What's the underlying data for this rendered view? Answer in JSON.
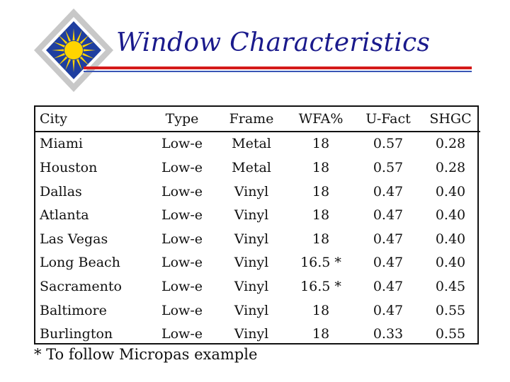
{
  "title": "Window Characteristics",
  "colors": {
    "title": "#1a1a8c",
    "rule_red": "#d41a1a",
    "rule_blue": "#3a55b5",
    "logo_blue": "#1f3fa0",
    "logo_yellow": "#ffd400"
  },
  "logo": {
    "icon": "sun-diamond-logo-icon"
  },
  "table": {
    "headers": [
      "City",
      "Type",
      "Frame",
      "WFA%",
      "U-Fact",
      "SHGC"
    ],
    "rows": [
      [
        "Miami",
        "Low-e",
        "Metal",
        "18",
        "0.57",
        "0.28"
      ],
      [
        "Houston",
        "Low-e",
        "Metal",
        "18",
        "0.57",
        "0.28"
      ],
      [
        "Dallas",
        "Low-e",
        "Vinyl",
        "18",
        "0.47",
        "0.40"
      ],
      [
        "Atlanta",
        "Low-e",
        "Vinyl",
        "18",
        "0.47",
        "0.40"
      ],
      [
        "Las Vegas",
        "Low-e",
        "Vinyl",
        "18",
        "0.47",
        "0.40"
      ],
      [
        "Long Beach",
        "Low-e",
        "Vinyl",
        "16.5 *",
        "0.47",
        "0.40"
      ],
      [
        "Sacramento",
        "Low-e",
        "Vinyl",
        "16.5 *",
        "0.47",
        "0.45"
      ],
      [
        "Baltimore",
        "Low-e",
        "Vinyl",
        "18",
        "0.47",
        "0.55"
      ],
      [
        "Burlington",
        "Low-e",
        "Vinyl",
        "18",
        "0.33",
        "0.55"
      ]
    ]
  },
  "footnote": "* To follow Micropas example"
}
